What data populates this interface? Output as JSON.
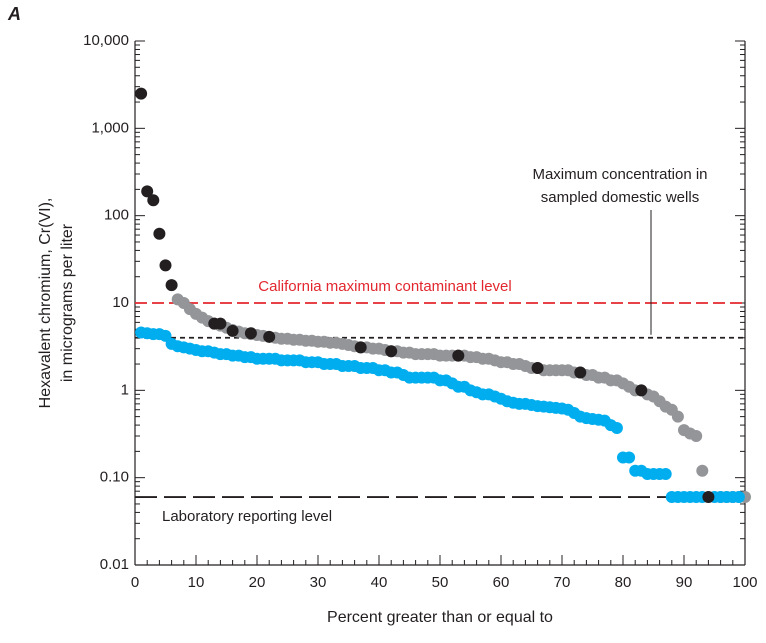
{
  "chart_data": {
    "type": "scatter",
    "panel": "A",
    "ylabel": [
      "Hexavalent chromium, Cr(VI),",
      "in micrograms per liter"
    ],
    "xlabel": "Percent greater than or equal to",
    "xlim": [
      0,
      100
    ],
    "xticks": [
      0,
      10,
      20,
      30,
      40,
      50,
      60,
      70,
      80,
      90,
      100
    ],
    "ylim": [
      0.01,
      10000
    ],
    "ylog": true,
    "yticks": [
      {
        "value": 0.01,
        "label": "0.01"
      },
      {
        "value": 0.1,
        "label": "0.10"
      },
      1,
      10,
      100,
      {
        "value": 1000,
        "label": "1,000"
      },
      {
        "value": 10000,
        "label": "10,000"
      }
    ],
    "reference_lines": [
      {
        "value": 10,
        "color": "#e2272e",
        "dash": "12 5",
        "label": [
          "California maximum contaminant level"
        ]
      },
      {
        "value": 4,
        "color": "#231f20",
        "dash": "5 4",
        "label": [
          "Maximum concentration in",
          "sampled domestic wells"
        ]
      },
      {
        "value": 0.06,
        "color": "#231f20",
        "dash": "22 7",
        "label": [
          "Laboratory reporting level"
        ]
      }
    ],
    "series": [
      {
        "color": "#939598",
        "x": [
          7,
          8,
          9,
          10,
          11,
          12,
          13,
          14,
          15,
          16,
          17,
          18,
          19,
          20,
          21,
          22,
          23,
          24,
          25,
          26,
          27,
          28,
          29,
          30,
          31,
          32,
          33,
          34,
          35,
          36,
          37,
          38,
          39,
          40,
          41,
          42,
          43,
          44,
          45,
          46,
          47,
          48,
          49,
          50,
          51,
          52,
          53,
          54,
          55,
          56,
          57,
          58,
          59,
          60,
          61,
          62,
          63,
          64,
          65,
          66,
          67,
          68,
          69,
          70,
          71,
          72,
          73,
          74,
          75,
          76,
          77,
          78,
          79,
          80,
          81,
          82,
          83,
          84,
          85,
          86,
          87,
          88,
          89,
          90,
          91,
          92,
          93,
          96,
          97,
          98,
          99,
          100
        ],
        "values": [
          11,
          10,
          8.5,
          7.5,
          6.8,
          6.2,
          5.8,
          5.5,
          5.2,
          4.9,
          4.7,
          4.5,
          4.4,
          4.3,
          4.2,
          4.1,
          4.0,
          3.9,
          3.9,
          3.8,
          3.8,
          3.7,
          3.7,
          3.6,
          3.6,
          3.5,
          3.5,
          3.4,
          3.3,
          3.2,
          3.1,
          3.1,
          3.0,
          3.0,
          2.9,
          2.8,
          2.8,
          2.7,
          2.7,
          2.6,
          2.6,
          2.6,
          2.6,
          2.5,
          2.5,
          2.5,
          2.5,
          2.5,
          2.4,
          2.4,
          2.3,
          2.3,
          2.2,
          2.1,
          2.1,
          2.0,
          2.0,
          1.9,
          1.8,
          1.8,
          1.7,
          1.7,
          1.7,
          1.7,
          1.7,
          1.6,
          1.6,
          1.5,
          1.5,
          1.4,
          1.4,
          1.3,
          1.3,
          1.2,
          1.1,
          1.0,
          1.0,
          0.9,
          0.85,
          0.75,
          0.65,
          0.6,
          0.5,
          0.35,
          0.32,
          0.3,
          0.12,
          0.06,
          0.06,
          0.06,
          0.06,
          0.06
        ]
      },
      {
        "color": "#00aeef",
        "x": [
          1,
          2,
          3,
          4,
          5,
          6,
          7,
          8,
          9,
          10,
          11,
          12,
          13,
          14,
          15,
          16,
          17,
          18,
          19,
          20,
          21,
          22,
          23,
          24,
          25,
          26,
          27,
          28,
          29,
          30,
          31,
          32,
          33,
          34,
          35,
          36,
          37,
          38,
          39,
          40,
          41,
          42,
          43,
          44,
          45,
          46,
          47,
          48,
          49,
          50,
          51,
          52,
          53,
          54,
          55,
          56,
          57,
          58,
          59,
          60,
          61,
          62,
          63,
          64,
          65,
          66,
          67,
          68,
          69,
          70,
          71,
          72,
          73,
          74,
          75,
          76,
          77,
          78,
          79,
          80,
          81,
          82,
          83,
          84,
          85,
          86,
          87,
          88,
          89,
          90,
          91,
          92,
          93,
          95,
          96,
          97,
          98,
          99
        ],
        "values": [
          4.6,
          4.5,
          4.4,
          4.4,
          4.2,
          3.4,
          3.2,
          3.1,
          3.0,
          2.9,
          2.8,
          2.8,
          2.7,
          2.6,
          2.6,
          2.5,
          2.5,
          2.4,
          2.4,
          2.3,
          2.3,
          2.3,
          2.3,
          2.2,
          2.2,
          2.2,
          2.2,
          2.1,
          2.1,
          2.1,
          2.0,
          2.0,
          2.0,
          1.9,
          1.9,
          1.9,
          1.8,
          1.8,
          1.8,
          1.7,
          1.7,
          1.6,
          1.6,
          1.5,
          1.4,
          1.4,
          1.4,
          1.4,
          1.4,
          1.3,
          1.3,
          1.2,
          1.1,
          1.1,
          1.0,
          0.95,
          0.9,
          0.9,
          0.85,
          0.8,
          0.75,
          0.72,
          0.7,
          0.7,
          0.68,
          0.66,
          0.65,
          0.64,
          0.63,
          0.62,
          0.6,
          0.55,
          0.5,
          0.48,
          0.47,
          0.46,
          0.45,
          0.4,
          0.37,
          0.17,
          0.17,
          0.12,
          0.12,
          0.11,
          0.11,
          0.11,
          0.11,
          0.06,
          0.06,
          0.06,
          0.06,
          0.06,
          0.06,
          0.06,
          0.06,
          0.06,
          0.06,
          0.06
        ]
      },
      {
        "color": "#231f20",
        "x": [
          1,
          2,
          3,
          4,
          5,
          6,
          13,
          14,
          16,
          19,
          22,
          37,
          42,
          53,
          66,
          73,
          83,
          94
        ],
        "values": [
          2500,
          190,
          150,
          62,
          27,
          16,
          5.8,
          5.8,
          4.8,
          4.5,
          4.1,
          3.1,
          2.8,
          2.5,
          1.8,
          1.6,
          1.0,
          0.06
        ]
      }
    ]
  }
}
